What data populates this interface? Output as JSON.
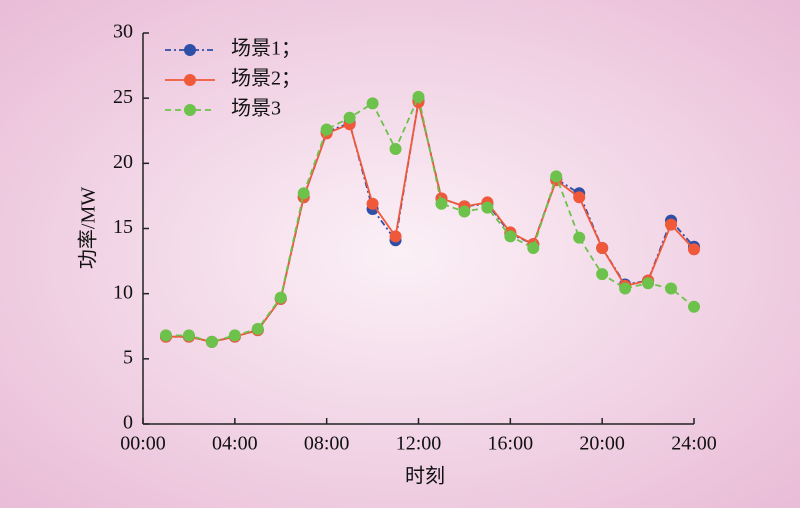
{
  "chart_data": {
    "type": "line",
    "x_label": "时刻",
    "y_label": "功率/MW",
    "x": [
      1,
      2,
      3,
      4,
      5,
      6,
      7,
      8,
      9,
      10,
      11,
      12,
      13,
      14,
      15,
      16,
      17,
      18,
      19,
      20,
      21,
      22,
      23,
      24
    ],
    "series": [
      {
        "name": "场景1；",
        "color": "#2f4ea6",
        "dash": "dashdot",
        "values": [
          6.7,
          6.7,
          6.3,
          6.7,
          7.2,
          9.6,
          17.4,
          22.4,
          23.1,
          16.5,
          14.1,
          24.8,
          17.3,
          16.7,
          16.9,
          14.6,
          13.8,
          18.8,
          17.7,
          13.5,
          10.7,
          11.0,
          15.6,
          13.6
        ]
      },
      {
        "name": "场景2；",
        "color": "#f0583a",
        "dash": "solid",
        "values": [
          6.7,
          6.7,
          6.3,
          6.7,
          7.2,
          9.6,
          17.4,
          22.3,
          23.0,
          16.9,
          14.4,
          24.7,
          17.3,
          16.7,
          17.0,
          14.7,
          13.8,
          18.7,
          17.4,
          13.5,
          10.6,
          11.0,
          15.3,
          13.4
        ]
      },
      {
        "name": "场景3",
        "color": "#6cc24a",
        "dash": "dashed",
        "values": [
          6.8,
          6.8,
          6.3,
          6.8,
          7.3,
          9.7,
          17.7,
          22.6,
          23.5,
          24.6,
          21.1,
          25.1,
          16.9,
          16.3,
          16.6,
          14.4,
          13.5,
          19.0,
          14.3,
          11.5,
          10.4,
          10.8,
          10.4,
          9.0
        ]
      }
    ],
    "xlim": [
      0,
      24
    ],
    "xticks": [
      {
        "value": 0,
        "label": "00:00"
      },
      {
        "value": 4,
        "label": "04:00"
      },
      {
        "value": 8,
        "label": "08:00"
      },
      {
        "value": 12,
        "label": "12:00"
      },
      {
        "value": 16,
        "label": "16:00"
      },
      {
        "value": 20,
        "label": "20:00"
      },
      {
        "value": 24,
        "label": "24:00"
      }
    ],
    "ylim": [
      0,
      30
    ],
    "yticks": [
      0,
      5,
      10,
      15,
      20,
      25,
      30
    ],
    "legend": "top-left"
  }
}
